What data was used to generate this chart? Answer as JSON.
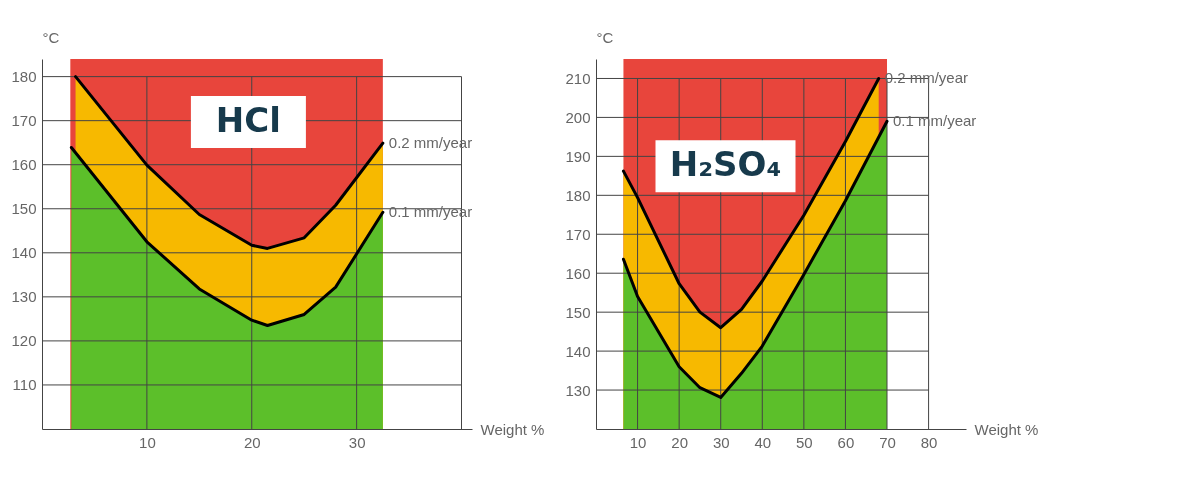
{
  "chart_data": [
    {
      "type": "line",
      "title": "HCl",
      "xlabel": "Weight %",
      "ylabel": "°C",
      "xlim": [
        0,
        41
      ],
      "ylim": [
        100,
        184
      ],
      "xticks": [
        10,
        20,
        30,
        {
          "value": 40,
          "label": null
        }
      ],
      "yticks": [
        110,
        120,
        130,
        140,
        150,
        160,
        170,
        180
      ],
      "grid": true,
      "legend": false,
      "marker": "none",
      "line_style": "solid",
      "bands": [
        {
          "axis": "x",
          "from": 2.7,
          "to": 32.5,
          "color": "#e8453c"
        }
      ],
      "series": [
        {
          "name": "0.2 mm/year",
          "type": "area",
          "color": "#f7b900",
          "x": [
            3.2,
            10,
            15,
            20,
            21.5,
            25,
            28,
            32.5
          ],
          "values": [
            180,
            159.9,
            148.7,
            141.7,
            141,
            143.4,
            150.8,
            164.9
          ]
        },
        {
          "name": "0.1 mm/year",
          "type": "area",
          "color": "#5cbf2a",
          "x": [
            2.8,
            10,
            15,
            20,
            21.5,
            25,
            28,
            32.5
          ],
          "values": [
            163.9,
            142.5,
            131.8,
            124.7,
            123.5,
            126,
            132.2,
            149.2
          ]
        }
      ]
    },
    {
      "type": "line",
      "title": "H₂SO₄",
      "xlabel": "Weight %",
      "ylabel": "°C",
      "xlim": [
        0,
        89
      ],
      "ylim": [
        120,
        215
      ],
      "xticks": [
        10,
        20,
        30,
        40,
        50,
        60,
        70,
        80
      ],
      "yticks": [
        130,
        140,
        150,
        160,
        170,
        180,
        190,
        200,
        210
      ],
      "grid": true,
      "legend": false,
      "marker": "none",
      "line_style": "solid",
      "bands": [
        {
          "axis": "x",
          "from": 6.6,
          "to": 70,
          "color": "#e8453c"
        }
      ],
      "series": [
        {
          "name": "0.2 mm/year",
          "type": "area",
          "color": "#f7b900",
          "x": [
            6.6,
            10,
            20,
            25,
            30,
            35,
            40,
            50,
            60,
            68
          ],
          "values": [
            186.2,
            179.4,
            157.3,
            150,
            146,
            150.7,
            158,
            174.9,
            193.8,
            210
          ]
        },
        {
          "name": "0.1 mm/year",
          "type": "area",
          "color": "#5cbf2a",
          "x": [
            6.6,
            10,
            20,
            25,
            30,
            35,
            40,
            50,
            60,
            70
          ],
          "values": [
            163.6,
            154,
            136,
            130.6,
            128.1,
            134.3,
            141.3,
            159.7,
            178.6,
            199
          ]
        }
      ]
    }
  ]
}
